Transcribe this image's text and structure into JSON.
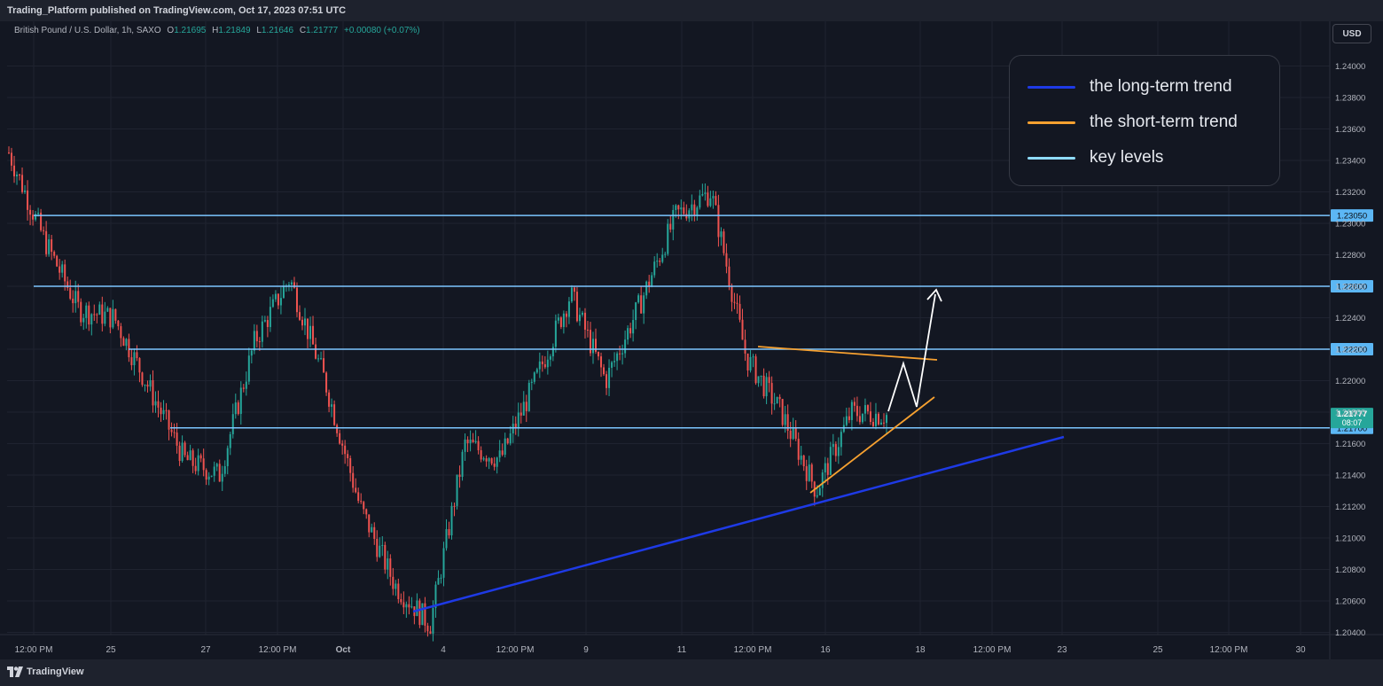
{
  "header": {
    "published_text": "Trading_Platform published on TradingView.com, Oct 17, 2023 07:51 UTC"
  },
  "symbol": {
    "name": "British Pound / U.S. Dollar, 1h, SAXO",
    "open_label": "O",
    "open": "1.21695",
    "high_label": "H",
    "high": "1.21849",
    "low_label": "L",
    "low": "1.21646",
    "close_label": "C",
    "close": "1.21777",
    "change": "+0.00080 (+0.07%)"
  },
  "currency_button": "USD",
  "legend": [
    {
      "label": "the long-term trend",
      "color": "#1e3ae6"
    },
    {
      "label": "the short-term trend",
      "color": "#f7a130"
    },
    {
      "label": "key levels",
      "color": "#8fdcff"
    }
  ],
  "footer": {
    "brand": "TradingView"
  },
  "colors": {
    "up": "#26a69a",
    "down": "#ef5350",
    "background": "#131722",
    "key_level": "#7cc6ff",
    "long_trend": "#1e3ae6",
    "short_trend": "#f7a130",
    "projection": "#ffffff"
  },
  "chart_data": {
    "type": "candlestick",
    "y_axis": {
      "ticks": [
        "1.24000",
        "1.23800",
        "1.23600",
        "1.23400",
        "1.23200",
        "1.23000",
        "1.22800",
        "1.22600",
        "1.22400",
        "1.22200",
        "1.22000",
        "1.21800",
        "1.21600",
        "1.21400",
        "1.21200",
        "1.21000",
        "1.20800",
        "1.20600",
        "1.20400"
      ],
      "range": [
        1.2034,
        1.2423
      ]
    },
    "x_axis": {
      "ticks": [
        "12:00 PM",
        "25",
        "27",
        "12:00 PM",
        "Oct",
        "4",
        "12:00 PM",
        "9",
        "11",
        "12:00 PM",
        "16",
        "18",
        "12:00 PM",
        "23",
        "25",
        "12:00 PM",
        "30"
      ]
    },
    "key_levels": [
      {
        "label": "1.23050",
        "value": 1.2305
      },
      {
        "label": "1.22600",
        "value": 1.226
      },
      {
        "label": "1.22200",
        "value": 1.222
      },
      {
        "label": "1.21700",
        "value": 1.217
      }
    ],
    "last_price": {
      "label": "1.21777",
      "countdown": "08:07",
      "value": 1.21777
    },
    "price_path": [
      [
        "Sep 21",
        1.2345
      ],
      [
        "Sep 22",
        1.229
      ],
      [
        "Sep 23",
        1.2245
      ],
      [
        "Sep 25",
        1.224
      ],
      [
        "Sep 26",
        1.2195
      ],
      [
        "Sep 27",
        1.215
      ],
      [
        "Sep 28",
        1.214
      ],
      [
        "Sep 29",
        1.2225
      ],
      [
        "Sep 30",
        1.2265
      ],
      [
        "Oct 1",
        1.22
      ],
      [
        "Oct 2",
        1.212
      ],
      [
        "Oct 3",
        1.207
      ],
      [
        "Oct 4",
        1.2045
      ],
      [
        "Oct 5",
        1.216
      ],
      [
        "Oct 6",
        1.215
      ],
      [
        "Oct 7",
        1.22
      ],
      [
        "Oct 8",
        1.2255
      ],
      [
        "Oct 9",
        1.22
      ],
      [
        "Oct 10",
        1.225
      ],
      [
        "Oct 11",
        1.2305
      ],
      [
        "Oct 12",
        1.232
      ],
      [
        "Oct 13",
        1.2215
      ],
      [
        "Oct 14",
        1.218
      ],
      [
        "Oct 15",
        1.213
      ],
      [
        "Oct 16",
        1.218
      ],
      [
        "Oct 17",
        1.2178
      ]
    ]
  }
}
